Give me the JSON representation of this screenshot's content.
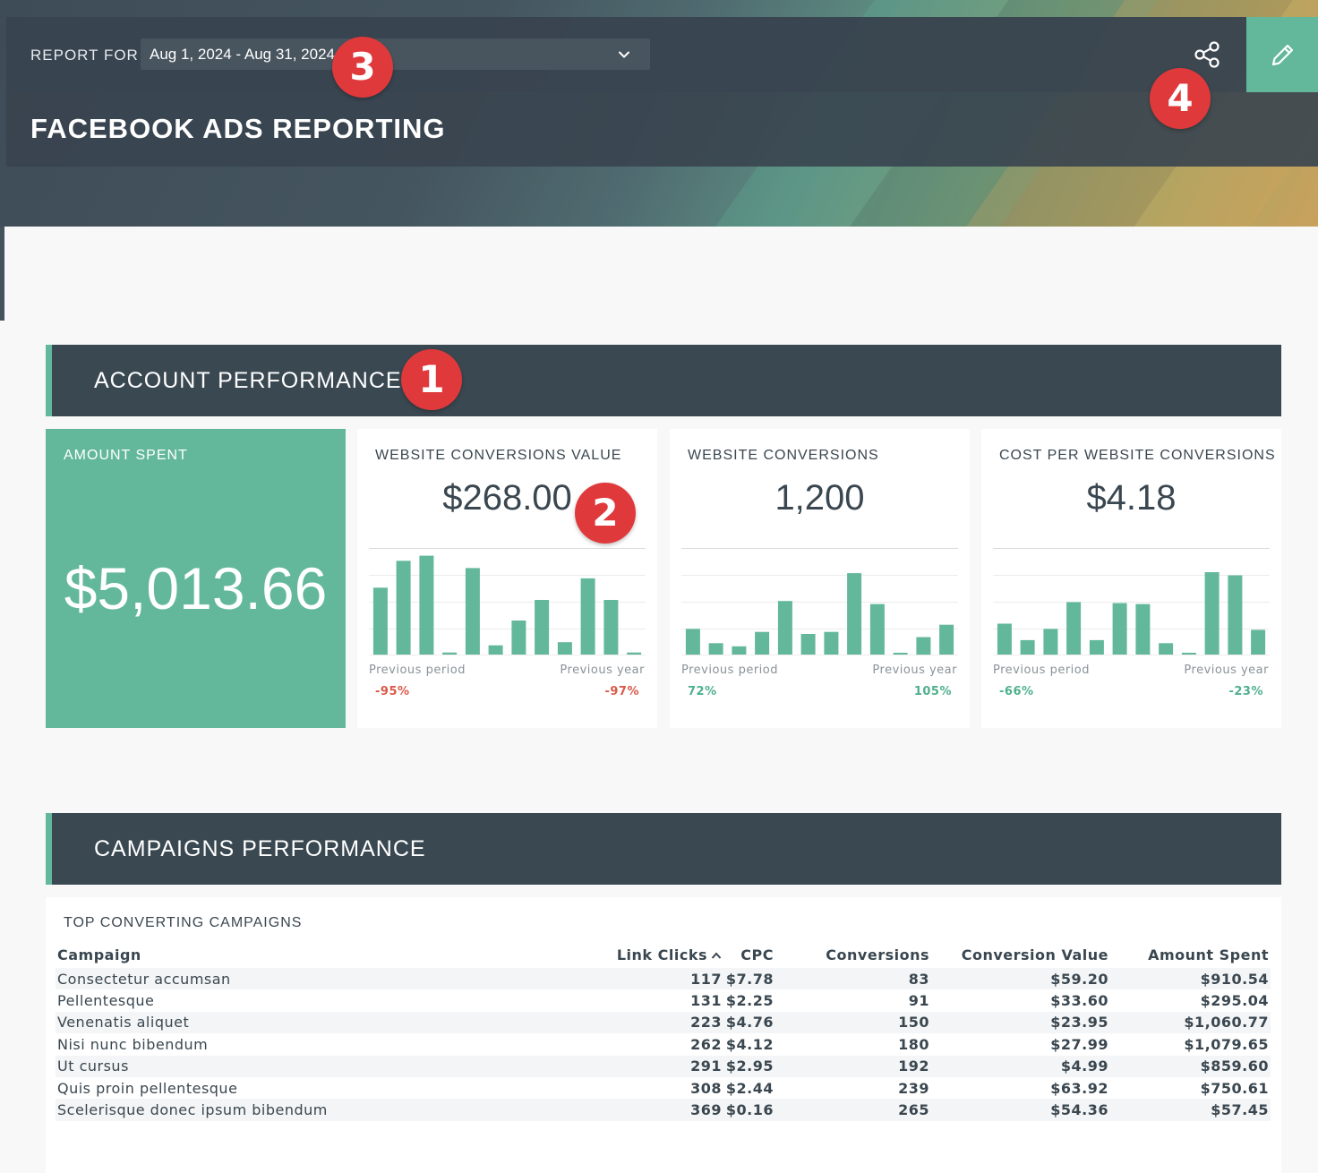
{
  "header": {
    "report_for_label": "REPORT FOR",
    "date_range": "Aug 1, 2024 - Aug 31, 2024",
    "title": "FACEBOOK ADS REPORTING"
  },
  "icons": {
    "share": "share-icon",
    "edit": "pencil-icon",
    "dropdown": "chevron-down-icon",
    "sort": "sort-ascending-icon"
  },
  "colors": {
    "accent": "#63b89c",
    "header_dark": "#3a4851",
    "negative": "#d9594a",
    "positive": "#4fb08d",
    "callout": "#e0393b"
  },
  "sections": {
    "account": "ACCOUNT PERFORMANCE",
    "campaigns": "CAMPAIGNS PERFORMANCE"
  },
  "kpis": {
    "amount_spent": {
      "label": "AMOUNT SPENT",
      "value": "$5,013.66"
    },
    "conv_value": {
      "label": "WEBSITE CONVERSIONS VALUE",
      "value": "$268.00",
      "prev_period_label": "Previous period",
      "prev_period": "-95%",
      "prev_year_label": "Previous year",
      "prev_year": "-97%",
      "bars": [
        0.65,
        0.91,
        0.96,
        0.02,
        0.84,
        0.09,
        0.33,
        0.53,
        0.12,
        0.74,
        0.53,
        0.02
      ]
    },
    "conversions": {
      "label": "WEBSITE CONVERSIONS",
      "value": "1,200",
      "prev_period_label": "Previous period",
      "prev_period": "72%",
      "prev_year_label": "Previous year",
      "prev_year": "105%",
      "bars": [
        0.25,
        0.11,
        0.08,
        0.22,
        0.52,
        0.2,
        0.22,
        0.79,
        0.49,
        0.01,
        0.17,
        0.29
      ]
    },
    "cost_per": {
      "label": "COST PER WEBSITE CONVERSIONS",
      "value": "$4.18",
      "prev_period_label": "Previous period",
      "prev_period": "-66%",
      "prev_year_label": "Previous year",
      "prev_year": "-23%",
      "bars": [
        0.3,
        0.14,
        0.25,
        0.51,
        0.14,
        0.5,
        0.49,
        0.11,
        0.0,
        0.8,
        0.77,
        0.24
      ]
    }
  },
  "campaigns_table": {
    "label": "TOP CONVERTING CAMPAIGNS",
    "columns": [
      "Campaign",
      "Link Clicks",
      "CPC",
      "Conversions",
      "Conversion Value",
      "Amount Spent"
    ],
    "rows": [
      [
        "Consectetur accumsan",
        "117",
        "$7.78",
        "83",
        "$59.20",
        "$910.54"
      ],
      [
        "Pellentesque",
        "131",
        "$2.25",
        "91",
        "$33.60",
        "$295.04"
      ],
      [
        "Venenatis aliquet",
        "223",
        "$4.76",
        "150",
        "$23.95",
        "$1,060.77"
      ],
      [
        "Nisi nunc bibendum",
        "262",
        "$4.12",
        "180",
        "$27.99",
        "$1,079.65"
      ],
      [
        "Ut cursus",
        "291",
        "$2.95",
        "192",
        "$4.99",
        "$859.60"
      ],
      [
        "Quis proin pellentesque",
        "308",
        "$2.44",
        "239",
        "$63.92",
        "$750.61"
      ],
      [
        "Scelerisque donec ipsum bibendum",
        "369",
        "$0.16",
        "265",
        "$54.36",
        "$57.45"
      ]
    ]
  },
  "callouts": [
    "1",
    "2",
    "3",
    "4"
  ]
}
